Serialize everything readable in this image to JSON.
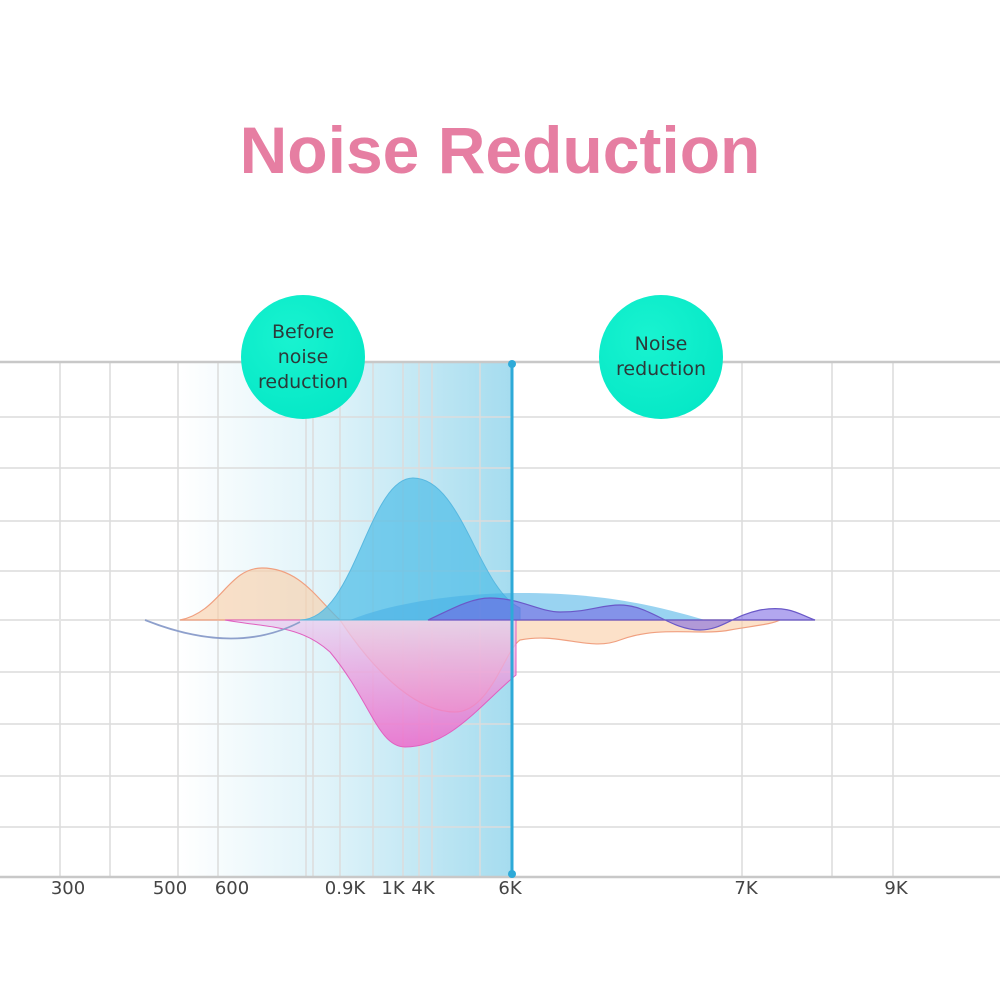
{
  "title": "Noise Reduction",
  "labels": {
    "before": "Before noise reduction",
    "after": "Noise reduction"
  },
  "x_ticks": [
    "300",
    "500",
    "600",
    "0.9K",
    "1K",
    "4K",
    "6K",
    "7K",
    "9K"
  ],
  "colors": {
    "title": "#e67ea2",
    "bubble": "#00e5c4",
    "divider": "#2eaad8"
  }
}
